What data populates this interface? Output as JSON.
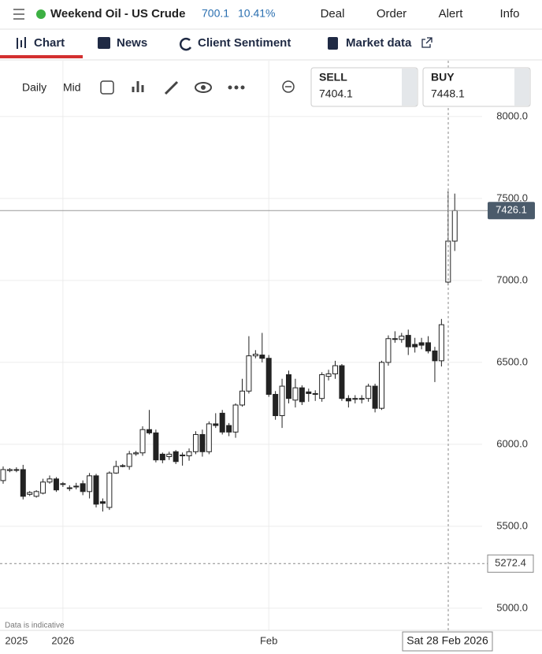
{
  "header": {
    "instrument": "Weekend Oil - US Crude",
    "price": "700.1",
    "change": "10.41%",
    "menu": [
      "Deal",
      "Order",
      "Alert",
      "Info"
    ]
  },
  "tabs": [
    "Chart",
    "News",
    "Client Sentiment",
    "Market data"
  ],
  "toolbar": {
    "interval": "Daily",
    "price_type": "Mid"
  },
  "quote": {
    "sell_label": "SELL",
    "sell": "7404.1",
    "buy_label": "BUY",
    "buy": "7448.1"
  },
  "chart_data": {
    "type": "candlestick",
    "categories": [
      null,
      null,
      "2025",
      null,
      null,
      null,
      null,
      null,
      null,
      "2026",
      null,
      null,
      null,
      null,
      null,
      null,
      null,
      null,
      null,
      null,
      null,
      null,
      null,
      null,
      null,
      null,
      null,
      null,
      null,
      null,
      null,
      null,
      null,
      null,
      null,
      null,
      null,
      null,
      null,
      null,
      "Feb",
      null,
      null,
      null,
      null,
      null,
      null,
      null,
      null,
      null,
      null,
      null,
      null,
      null,
      null,
      null,
      null,
      null,
      null,
      null,
      null,
      null,
      null,
      null,
      null,
      null,
      null,
      null,
      null
    ],
    "open": [
      5779,
      5840,
      5846,
      5846,
      5695,
      5683,
      5702,
      5770,
      5789,
      5760,
      5735,
      5745,
      5760,
      5712,
      5808,
      5650,
      5615,
      5825,
      5870,
      5865,
      5942,
      5948,
      6090,
      6070,
      5940,
      5925,
      5955,
      5930,
      5930,
      5955,
      6060,
      5955,
      6125,
      6190,
      6115,
      6075,
      6240,
      6325,
      6540,
      6545,
      6525,
      6305,
      6175,
      6425,
      6270,
      6345,
      6320,
      6305,
      6280,
      6415,
      6430,
      6480,
      6280,
      6275,
      6280,
      6280,
      6355,
      6220,
      6500,
      6645,
      6640,
      6665,
      6610,
      6620,
      6620,
      6570,
      6510,
      6990,
      7240
    ],
    "high": [
      5865,
      5855,
      5860,
      5875,
      5715,
      5720,
      5790,
      5810,
      5800,
      5770,
      5750,
      5765,
      5780,
      5825,
      5820,
      5670,
      5835,
      5900,
      5880,
      5960,
      5960,
      6110,
      6210,
      6090,
      5950,
      5955,
      5965,
      5950,
      5975,
      6080,
      6090,
      6140,
      6190,
      6210,
      6130,
      6250,
      6400,
      6660,
      6575,
      6680,
      6545,
      6325,
      6400,
      6450,
      6400,
      6360,
      6340,
      6330,
      6440,
      6455,
      6510,
      6490,
      6300,
      6300,
      6300,
      6370,
      6370,
      6510,
      6665,
      6690,
      6680,
      6700,
      6650,
      6650,
      6660,
      6595,
      6765,
      7545,
      7530
    ],
    "low": [
      5760,
      5830,
      5830,
      5664,
      5685,
      5675,
      5695,
      5760,
      5710,
      5740,
      5715,
      5725,
      5690,
      5670,
      5615,
      5590,
      5600,
      5820,
      5860,
      5845,
      5930,
      5930,
      6060,
      5890,
      5885,
      5905,
      5880,
      5870,
      5900,
      5940,
      5925,
      5940,
      6100,
      6060,
      6050,
      6040,
      6230,
      6310,
      6525,
      6500,
      6290,
      6150,
      6100,
      6250,
      6225,
      6240,
      6260,
      6265,
      6260,
      6390,
      6400,
      6265,
      6225,
      6250,
      6250,
      6260,
      6195,
      6210,
      6480,
      6620,
      6620,
      6545,
      6560,
      6580,
      6555,
      6380,
      6475,
      6970,
      7180
    ],
    "close": [
      5846,
      5846,
      5842,
      5683,
      5706,
      5712,
      5770,
      5789,
      5722,
      5755,
      5730,
      5740,
      5712,
      5808,
      5635,
      5640,
      5825,
      5865,
      5865,
      5942,
      5948,
      6090,
      6070,
      5905,
      5905,
      5940,
      5895,
      5935,
      5955,
      6060,
      5955,
      6125,
      6115,
      6075,
      6075,
      6240,
      6325,
      6540,
      6550,
      6525,
      6305,
      6175,
      6355,
      6280,
      6345,
      6260,
      6310,
      6310,
      6425,
      6430,
      6480,
      6280,
      6265,
      6280,
      6275,
      6355,
      6220,
      6500,
      6645,
      6640,
      6660,
      6595,
      6595,
      6605,
      6570,
      6510,
      6730,
      7240,
      7426.1
    ],
    "ylim": [
      4865,
      8341
    ],
    "yticks": [
      {
        "value": 5000,
        "label": "5000.0"
      },
      {
        "value": 5500,
        "label": "5500.0"
      },
      {
        "value": 6000,
        "label": "6000.0"
      },
      {
        "value": 6500,
        "label": "6500.0"
      },
      {
        "value": 7000,
        "label": "7000.0"
      },
      {
        "value": 7500,
        "label": "7500.0"
      },
      {
        "value": 8000,
        "label": "8000.0"
      }
    ],
    "grid": true,
    "up_color": "#ffffff",
    "down_color": "#222222",
    "last_price": 7426.1,
    "crosshair_value": 5272.4,
    "crosshair_label": "Sat 28 Feb 2026",
    "note": "Data is indicative"
  }
}
